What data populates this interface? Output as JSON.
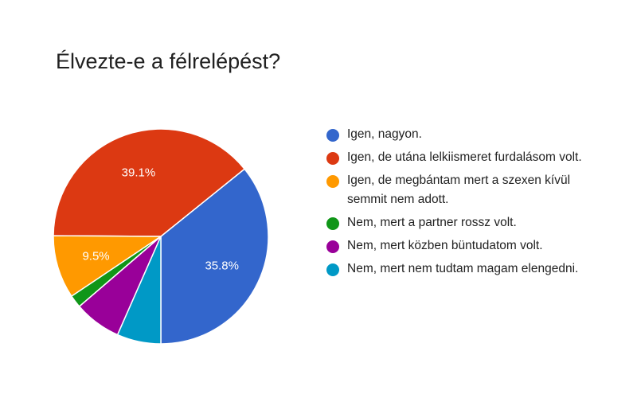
{
  "chart_data": {
    "type": "pie",
    "title": "Élvezte-e a félrelépést?",
    "series": [
      {
        "categories": [
          "Igen, nagyon.",
          "Igen, de utána lelkiismeret furdalásom volt.",
          "Igen, de megbántam mert a szexen kívül semmit nem adott.",
          "Nem, mert a partner rossz volt.",
          "Nem, mert közben büntudatom volt.",
          "Nem, mert nem tudtam magam elengedni."
        ],
        "values": [
          35.8,
          39.1,
          9.5,
          1.9,
          7.1,
          6.6
        ],
        "data_labels": [
          "35.8%",
          "39.1%",
          "9.5%",
          "",
          "",
          ""
        ],
        "colors": [
          "#3366cc",
          "#dc3912",
          "#ff9900",
          "#109618",
          "#990099",
          "#0099c6"
        ]
      }
    ],
    "legend_position": "right",
    "start_angle_deg": 90,
    "direction": "counterclockwise"
  }
}
